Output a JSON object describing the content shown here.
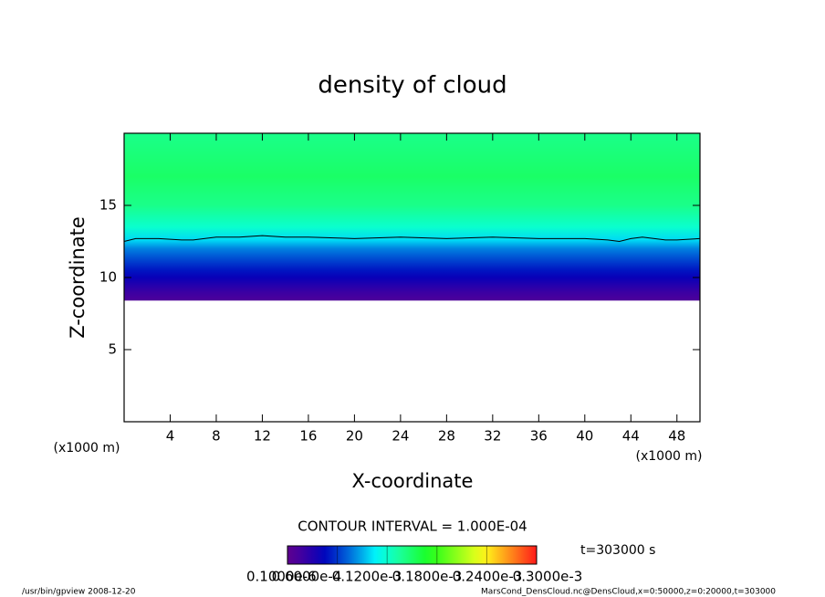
{
  "chart_data": {
    "type": "contour",
    "title": "density of cloud",
    "xlabel": "X-coordinate",
    "ylabel": "Z-coordinate",
    "x_unit_left": "(x1000 m)",
    "x_unit_right": "(x1000 m)",
    "xlim": [
      0,
      50
    ],
    "xticks": [
      4,
      8,
      12,
      16,
      20,
      24,
      28,
      32,
      36,
      40,
      44,
      48
    ],
    "ylim": [
      0,
      20
    ],
    "yticks": [
      5,
      10,
      15
    ],
    "profile": {
      "z": [
        8.4,
        9,
        9.5,
        10,
        10.5,
        11,
        11.5,
        12,
        12.6,
        13.5,
        15,
        17,
        20
      ],
      "values": [
        1e-05,
        2e-05,
        3e-05,
        4e-05,
        5e-05,
        6e-05,
        7e-05,
        8e-05,
        0.0001,
        0.00012,
        0.00014,
        0.00015,
        0.00014
      ]
    },
    "contour": {
      "level": 0.0001,
      "x": [
        0,
        1,
        3,
        5,
        6,
        8,
        10,
        12,
        14,
        16,
        20,
        24,
        28,
        32,
        36,
        40,
        42,
        43,
        44,
        45,
        47,
        48,
        50
      ],
      "z": [
        12.5,
        12.7,
        12.7,
        12.6,
        12.6,
        12.8,
        12.8,
        12.9,
        12.8,
        12.8,
        12.7,
        12.8,
        12.7,
        12.8,
        12.7,
        12.7,
        12.6,
        12.5,
        12.7,
        12.8,
        12.6,
        12.6,
        12.7
      ]
    },
    "contour_interval": "CONTOUR INTERVAL = 1.000E-04",
    "time_label": "t=303000 s",
    "colorbar": {
      "lim": [
        0,
        0.0003
      ],
      "ticks": [
        {
          "value": 1e-07,
          "label": "0.1000e-6"
        },
        {
          "value": 6e-05,
          "label": "0.6000e-4"
        },
        {
          "value": 0.00012,
          "label": "0.1200e-3"
        },
        {
          "value": 0.00018,
          "label": "0.1800e-3"
        },
        {
          "value": 0.00024,
          "label": "0.2400e-3"
        },
        {
          "value": 0.0003,
          "label": "0.3000e-3"
        }
      ]
    },
    "footer_left": "/usr/bin/gpview   2008-12-20",
    "footer_right": "MarsCond_DensCloud.nc@DensCloud,x=0:50000,z=0:20000,t=303000"
  }
}
